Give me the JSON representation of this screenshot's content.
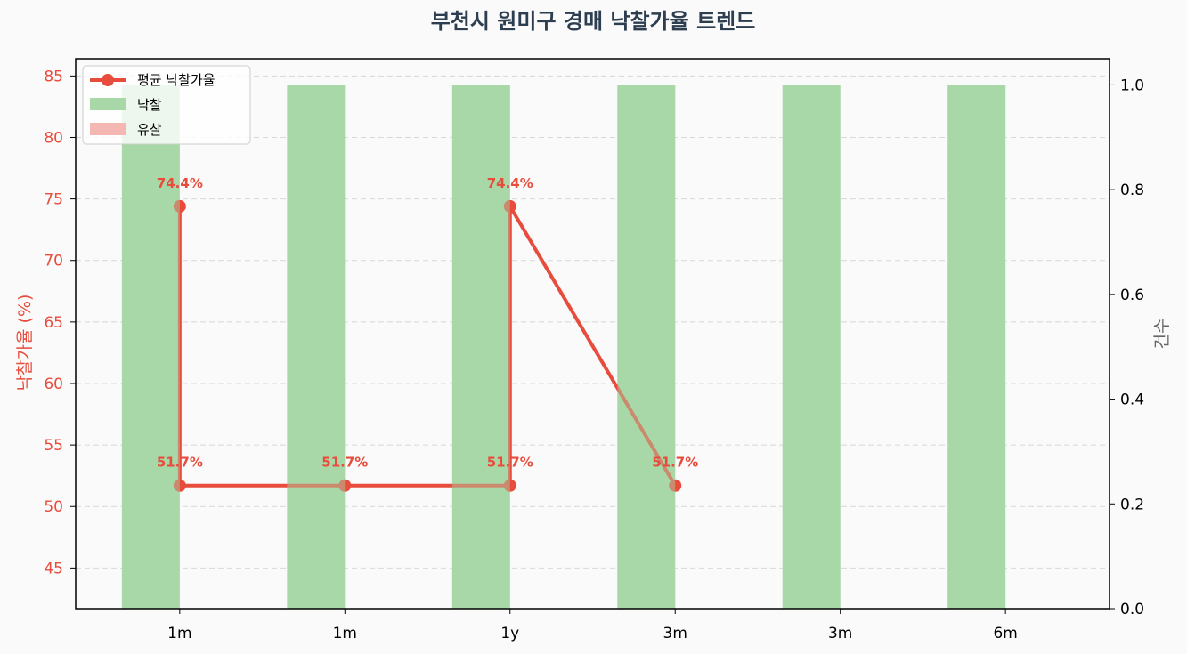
{
  "chart_data": {
    "type": "bar+line",
    "title": "부천시 원미구 경매 낙찰가율 트렌드",
    "categories": [
      "1m",
      "1m",
      "1y",
      "3m",
      "3m",
      "6m"
    ],
    "bars": [
      {
        "name": "낙찰",
        "values": [
          1,
          1,
          1,
          1,
          1,
          1
        ],
        "color": "#a8d8a8"
      },
      {
        "name": "유찰",
        "values": [
          0,
          0,
          0,
          0,
          0,
          0
        ],
        "color": "#f5b7b1"
      }
    ],
    "line": {
      "name": "평균 낙찰가율",
      "color": "#e74c3c",
      "points": [
        {
          "x": 0,
          "y": 74.4,
          "label": "74.4%"
        },
        {
          "x": 0,
          "y": 51.7,
          "label": "51.7%"
        },
        {
          "x": 1,
          "y": 51.7,
          "label": "51.7%"
        },
        {
          "x": 2,
          "y": 51.7,
          "label": "51.7%"
        },
        {
          "x": 2,
          "y": 74.4,
          "label": "74.4%"
        },
        {
          "x": 3,
          "y": 51.7,
          "label": "51.7%"
        }
      ]
    },
    "y_left": {
      "label": "낙찰가율 (%)",
      "min": 41.7,
      "max": 86.4,
      "ticks": [
        45,
        50,
        55,
        60,
        65,
        70,
        75,
        80,
        85
      ],
      "color": "#e74c3c"
    },
    "y_right": {
      "label": "건수",
      "min": 0,
      "max": 1.05,
      "ticks": [
        0.0,
        0.2,
        0.4,
        0.6,
        0.8,
        1.0
      ],
      "tick_labels": [
        "0.0",
        "0.2",
        "0.4",
        "0.6",
        "0.8",
        "1.0"
      ],
      "color": "#000000"
    },
    "grid": true,
    "legend_position": "top-left"
  }
}
